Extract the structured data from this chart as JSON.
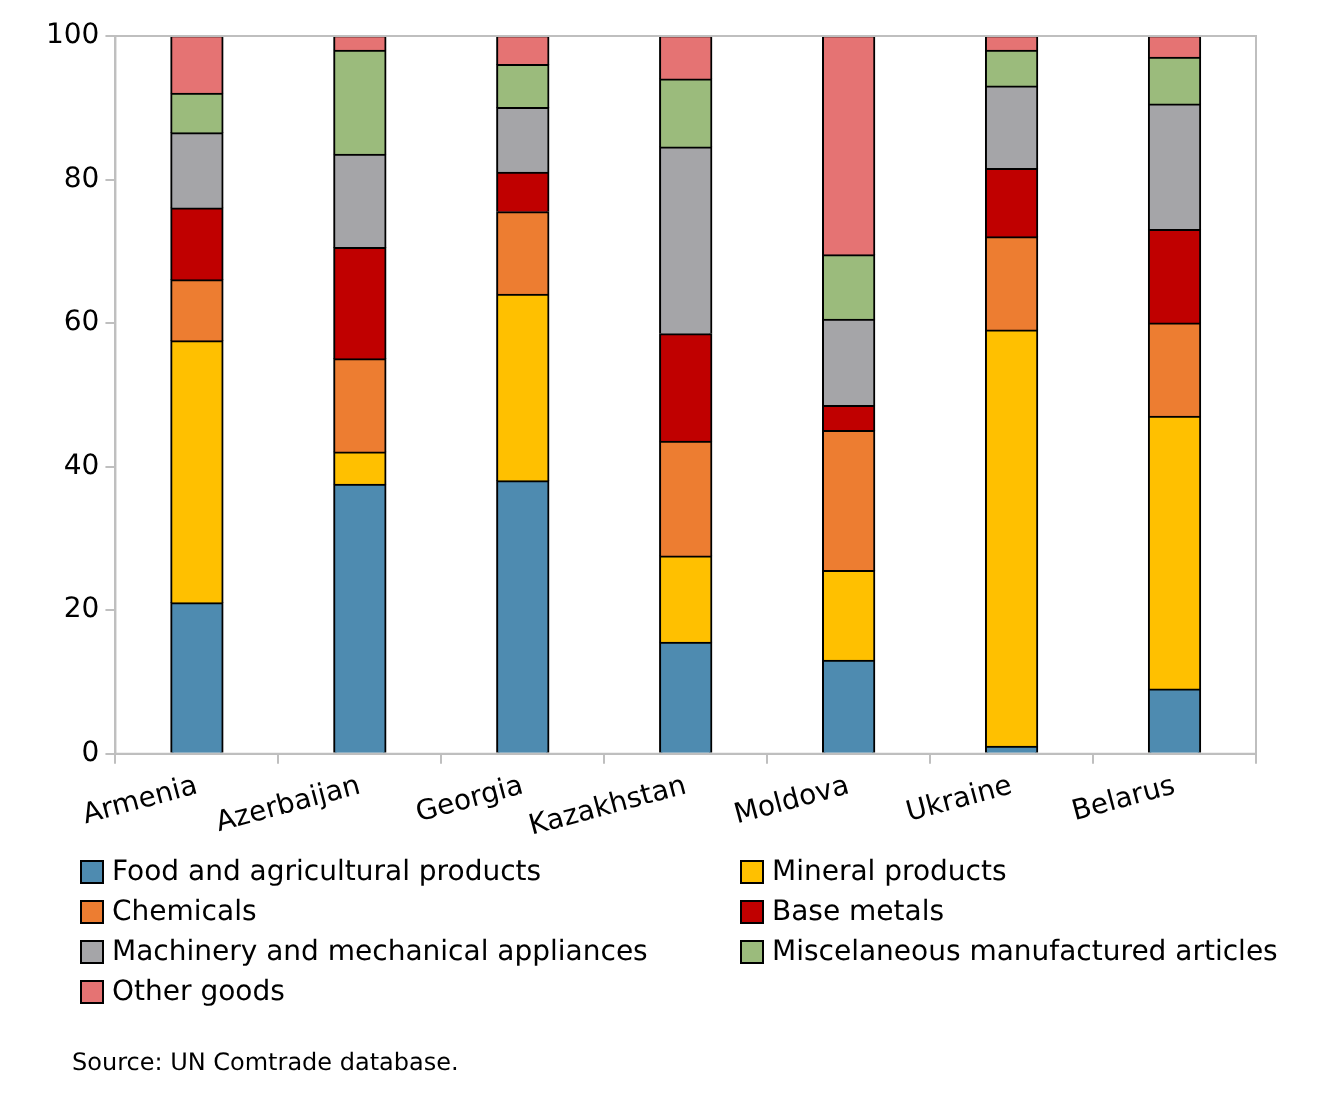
{
  "chart_data": {
    "type": "bar",
    "stacked": true,
    "categories": [
      "Armenia",
      "Azerbaijan",
      "Georgia",
      "Kazakhstan",
      "Moldova",
      "Ukraine",
      "Belarus"
    ],
    "series": [
      {
        "name": "Food and agricultural products",
        "color": "#4e8bb0",
        "values": [
          21,
          37.5,
          38,
          15.5,
          13,
          1,
          9
        ]
      },
      {
        "name": "Mineral products",
        "color": "#ffc000",
        "values": [
          36.5,
          4.5,
          26,
          12,
          12.5,
          58,
          38
        ]
      },
      {
        "name": "Chemicals",
        "color": "#ed7d31",
        "values": [
          8.5,
          13,
          11.5,
          16,
          19.5,
          13,
          13
        ]
      },
      {
        "name": "Base metals",
        "color": "#c00000",
        "values": [
          10,
          15.5,
          5.5,
          15,
          3.5,
          9.5,
          13
        ]
      },
      {
        "name": "Machinery and mechanical appliances",
        "color": "#a5a5a8",
        "values": [
          10.5,
          13,
          9,
          26,
          12,
          11.5,
          17.5
        ]
      },
      {
        "name": "Miscelaneous manufactured articles",
        "color": "#9bbb7c",
        "values": [
          5.5,
          14.5,
          6,
          9.5,
          9,
          5,
          6.5
        ]
      },
      {
        "name": "Other goods",
        "color": "#e57373",
        "values": [
          8,
          2,
          4,
          6,
          30.5,
          2,
          3
        ]
      }
    ],
    "ylim": [
      0,
      100
    ],
    "yticks": [
      0,
      20,
      40,
      60,
      80,
      100
    ],
    "grid": false,
    "legend": "bottom",
    "annotations": [
      "Source: UN Comtrade database."
    ]
  }
}
